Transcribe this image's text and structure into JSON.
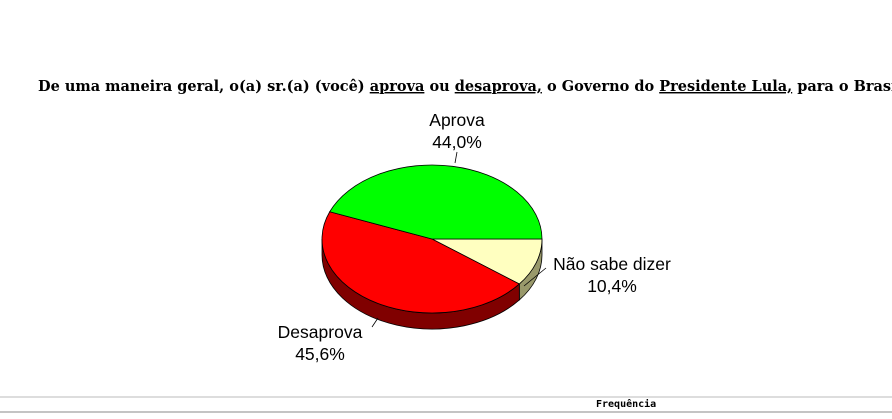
{
  "chart_data": {
    "type": "pie3d",
    "title": [
      "De uma maneira geral, o(a) sr.(a) (você) ",
      "aprova",
      " ou ",
      "desaprova,",
      " o Governo do ",
      "Presidente Lula,",
      " para o Brasil?"
    ],
    "title_underline": [
      false,
      true,
      false,
      true,
      false,
      true,
      false
    ],
    "categories": [
      "Não sabe dizer",
      "Desaprova",
      "Aprova"
    ],
    "values": [
      10.4,
      45.6,
      44.0
    ],
    "value_labels": [
      "10,4%",
      "45,6%",
      "44,0%"
    ],
    "colors": [
      "#ffffc0",
      "#ff0000",
      "#00ff00"
    ],
    "side_colors": [
      "#99996b",
      "#800000",
      "#008000"
    ]
  },
  "footer": {
    "column_header": "Frequência"
  }
}
